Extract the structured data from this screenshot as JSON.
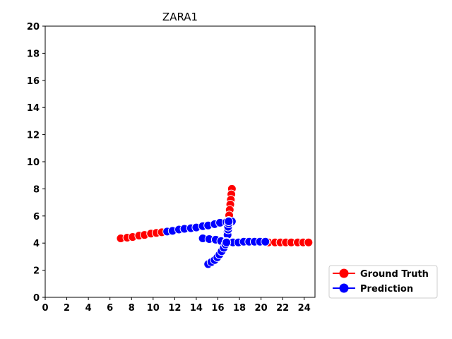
{
  "chart_data": {
    "type": "scatter",
    "title": "ZARA1",
    "xlim": [
      0,
      25
    ],
    "ylim": [
      0,
      20
    ],
    "x_ticks": [
      "0",
      "2",
      "4",
      "6",
      "8",
      "10",
      "12",
      "14",
      "16",
      "18",
      "20",
      "22",
      "24"
    ],
    "y_ticks": [
      "0",
      "2",
      "4",
      "6",
      "8",
      "10",
      "12",
      "14",
      "16",
      "18",
      "20"
    ],
    "legend_position": "outside-lower-right",
    "grid": false,
    "series": [
      {
        "name": "Ground Truth",
        "color": "#ff0000",
        "tracks": [
          [
            [
              7.0,
              4.35
            ],
            [
              7.6,
              4.4
            ],
            [
              8.1,
              4.45
            ],
            [
              8.7,
              4.55
            ],
            [
              9.2,
              4.6
            ],
            [
              9.8,
              4.7
            ],
            [
              10.3,
              4.75
            ],
            [
              10.8,
              4.8
            ]
          ],
          [
            [
              17.3,
              8.0
            ],
            [
              17.25,
              7.6
            ],
            [
              17.2,
              7.2
            ],
            [
              17.15,
              6.85
            ],
            [
              17.1,
              6.45
            ],
            [
              17.05,
              6.05
            ],
            [
              17.0,
              5.65
            ],
            [
              16.95,
              5.3
            ]
          ],
          [
            [
              20.7,
              4.05
            ],
            [
              21.3,
              4.05
            ],
            [
              21.8,
              4.05
            ],
            [
              22.3,
              4.05
            ],
            [
              22.8,
              4.05
            ],
            [
              23.4,
              4.05
            ],
            [
              23.9,
              4.05
            ],
            [
              24.4,
              4.05
            ]
          ]
        ]
      },
      {
        "name": "Prediction",
        "color": "#0000ff",
        "tracks": [
          [
            [
              11.3,
              4.85
            ],
            [
              11.8,
              4.9
            ],
            [
              12.4,
              5.0
            ],
            [
              12.9,
              5.05
            ],
            [
              13.5,
              5.1
            ],
            [
              14.0,
              5.15
            ],
            [
              14.6,
              5.25
            ],
            [
              15.1,
              5.3
            ],
            [
              15.7,
              5.4
            ],
            [
              16.2,
              5.5
            ],
            [
              16.8,
              5.55
            ],
            [
              17.3,
              5.6
            ]
          ],
          [
            [
              16.9,
              4.8
            ],
            [
              16.9,
              4.6
            ],
            [
              16.95,
              5.0
            ],
            [
              16.95,
              5.2
            ],
            [
              17.0,
              5.45
            ],
            [
              17.0,
              5.6
            ]
          ],
          [
            [
              14.6,
              4.35
            ],
            [
              15.2,
              4.3
            ],
            [
              15.8,
              4.25
            ],
            [
              16.3,
              4.15
            ],
            [
              16.8,
              4.1
            ],
            [
              17.4,
              4.05
            ],
            [
              17.9,
              4.05
            ],
            [
              18.4,
              4.1
            ],
            [
              18.9,
              4.1
            ],
            [
              19.4,
              4.1
            ],
            [
              19.9,
              4.1
            ],
            [
              20.4,
              4.1
            ]
          ],
          [
            [
              15.1,
              2.45
            ],
            [
              15.4,
              2.6
            ],
            [
              15.7,
              2.75
            ],
            [
              15.95,
              2.95
            ],
            [
              16.15,
              3.15
            ],
            [
              16.35,
              3.4
            ],
            [
              16.55,
              3.65
            ],
            [
              16.7,
              3.9
            ],
            [
              16.8,
              4.05
            ]
          ]
        ]
      }
    ]
  }
}
